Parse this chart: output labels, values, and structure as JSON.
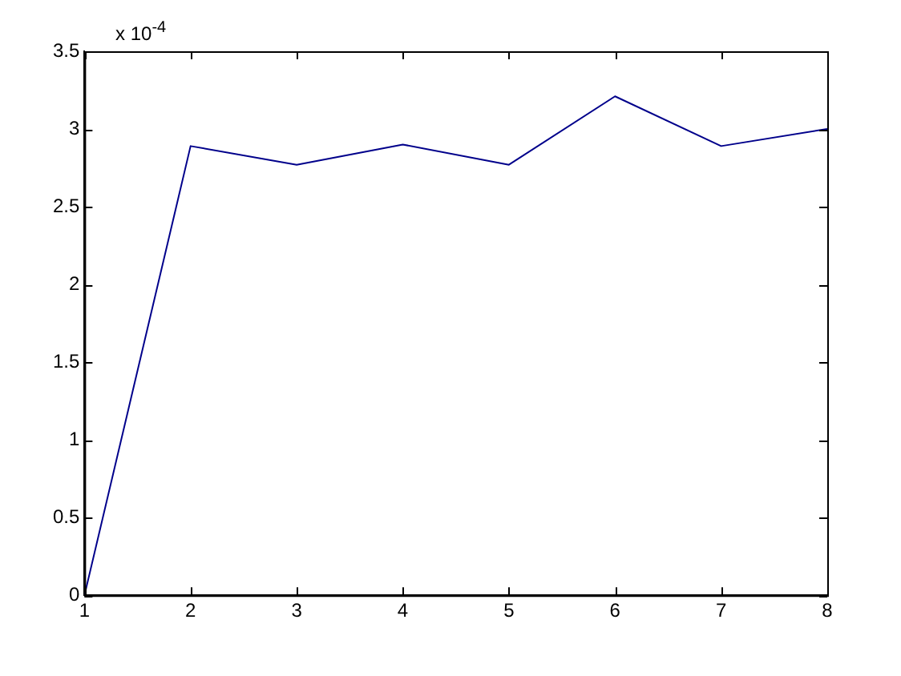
{
  "chart_data": {
    "type": "line",
    "x": [
      1,
      2,
      3,
      4,
      5,
      6,
      7,
      8
    ],
    "series": [
      {
        "color": "#00008b",
        "values": [
          0,
          2.89,
          2.77,
          2.9,
          2.77,
          3.21,
          2.89,
          3.0
        ]
      }
    ],
    "xlim": [
      1,
      8
    ],
    "xticks": [
      1,
      2,
      3,
      4,
      5,
      6,
      7,
      8
    ],
    "ylim": [
      0,
      3.5
    ],
    "yticks": [
      0,
      0.5,
      1,
      1.5,
      2,
      2.5,
      3,
      3.5
    ],
    "annotations": [
      "x 10$^{-4}$"
    ],
    "grid": false,
    "legend": false,
    "marker": "none",
    "line_style": "solid"
  }
}
